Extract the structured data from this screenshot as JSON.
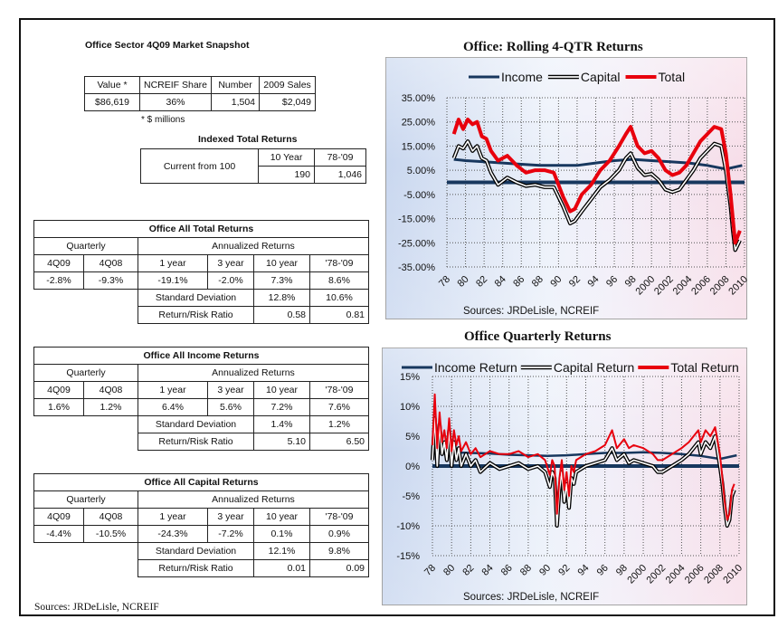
{
  "snapshot": {
    "title": "Office Sector 4Q09 Market Snapshot",
    "headers": [
      "Value *",
      "NCREIF Share",
      "Number",
      "2009 Sales"
    ],
    "values": [
      "$86,619",
      "36%",
      "1,504",
      "$2,049"
    ],
    "footnote": "* $ millions"
  },
  "indexed": {
    "title": "Indexed Total Returns",
    "label": "Current from 100",
    "headers": [
      "10 Year",
      "78-'09"
    ],
    "values": [
      "190",
      "1,046"
    ]
  },
  "return_tables": [
    {
      "title": "Office All Total Returns",
      "quarterly_label": "Quarterly",
      "annualized_label": "Annualized Returns",
      "cols": [
        "4Q09",
        "4Q08",
        "1 year",
        "3 year",
        "10 year",
        "'78-'09"
      ],
      "vals": [
        "-2.8%",
        "-9.3%",
        "-19.1%",
        "-2.0%",
        "7.3%",
        "8.6%"
      ],
      "std_label": "Standard Deviation",
      "std": [
        "12.8%",
        "10.6%"
      ],
      "rr_label": "Return/Risk Ratio",
      "rr": [
        "0.58",
        "0.81"
      ]
    },
    {
      "title": "Office All Income Returns",
      "quarterly_label": "Quarterly",
      "annualized_label": "Annualized Returns",
      "cols": [
        "4Q09",
        "4Q08",
        "1 year",
        "3 year",
        "10 year",
        "'78-'09"
      ],
      "vals": [
        "1.6%",
        "1.2%",
        "6.4%",
        "5.6%",
        "7.2%",
        "7.6%"
      ],
      "std_label": "Standard Deviation",
      "std": [
        "1.4%",
        "1.2%"
      ],
      "rr_label": "Return/Risk Ratio",
      "rr": [
        "5.10",
        "6.50"
      ]
    },
    {
      "title": "Office All Capital Returns",
      "quarterly_label": "Quarterly",
      "annualized_label": "Annualized Returns",
      "cols": [
        "4Q09",
        "4Q08",
        "1 year",
        "3 year",
        "10 year",
        "'78-'09"
      ],
      "vals": [
        "-4.4%",
        "-10.5%",
        "-24.3%",
        "-7.2%",
        "0.1%",
        "0.9%"
      ],
      "std_label": "Standard Deviation",
      "std": [
        "12.1%",
        "9.8%"
      ],
      "rr_label": "Return/Risk Ratio",
      "rr": [
        "0.01",
        "0.09"
      ]
    }
  ],
  "sources_left": "Sources: JRDeLisle, NCREIF",
  "chart_data": [
    {
      "type": "line",
      "title": "Office:  Rolling 4-QTR Returns",
      "source": "Sources: JRDeLisle, NCREIF",
      "legend_position": "top",
      "grid": true,
      "x_ticks": [
        "78",
        "80",
        "82",
        "84",
        "86",
        "88",
        "90",
        "92",
        "94",
        "96",
        "98",
        "2000",
        "2002",
        "2004",
        "2006",
        "2008",
        "2010"
      ],
      "y_ticks": [
        "35.00%",
        "25.00%",
        "15.00%",
        "5.00%",
        "-5.00%",
        "-15.00%",
        "-25.00%",
        "-35.00%"
      ],
      "xlim": [
        1978,
        2010
      ],
      "ylim": [
        -35,
        35
      ],
      "series": [
        {
          "name": "Income",
          "color": "#17375e",
          "style": "solid",
          "x": [
            1978.75,
            1980,
            1982,
            1984,
            1986,
            1988,
            1990,
            1992,
            1994,
            1996,
            1998,
            2000,
            2002,
            2004,
            2006,
            2008,
            2009.75
          ],
          "y": [
            9.5,
            9,
            8.5,
            8,
            7.5,
            7,
            7,
            7,
            8,
            9,
            9.5,
            9,
            8.5,
            8,
            7,
            5.5,
            7
          ]
        },
        {
          "name": "Capital",
          "color": "#000000",
          "style": "double",
          "x": [
            1978.75,
            1979.25,
            1979.75,
            1980.25,
            1980.75,
            1981.25,
            1981.75,
            1982.25,
            1982.75,
            1983.5,
            1984.5,
            1985.5,
            1986.5,
            1987.5,
            1988.5,
            1989.5,
            1990.5,
            1991.25,
            1991.75,
            1992.5,
            1993.5,
            1994.5,
            1995.5,
            1996.5,
            1997.25,
            1997.75,
            1998.5,
            1999.25,
            2000,
            2000.75,
            2001.5,
            2002.25,
            2003,
            2003.75,
            2004.5,
            2005.25,
            2006,
            2006.75,
            2007.5,
            2008,
            2008.5,
            2008.75,
            2009,
            2009.5
          ],
          "y": [
            10,
            15,
            14,
            17,
            13,
            15,
            10,
            9,
            4,
            -1,
            2,
            0,
            -1.5,
            -1,
            -2,
            -2,
            -10,
            -17,
            -16,
            -12,
            -7,
            -2,
            1,
            5,
            10,
            12,
            6,
            3,
            3.5,
            1,
            -3,
            -4,
            -3,
            1,
            5,
            10,
            13,
            16,
            15,
            5,
            -10,
            -20,
            -28,
            -24
          ]
        },
        {
          "name": "Total",
          "color": "#e8000d",
          "style": "solid",
          "x": [
            1978.75,
            1979.25,
            1979.75,
            1980.25,
            1980.75,
            1981.25,
            1981.75,
            1982.25,
            1982.75,
            1983.5,
            1984.5,
            1985.5,
            1986.5,
            1987.5,
            1988.5,
            1989.5,
            1990.5,
            1991.25,
            1991.75,
            1992.5,
            1993.5,
            1994.5,
            1995.5,
            1996.5,
            1997.25,
            1997.75,
            1998.5,
            1999.25,
            2000,
            2000.75,
            2001.5,
            2002.25,
            2003,
            2003.75,
            2004.5,
            2005.25,
            2006,
            2006.75,
            2007.5,
            2008,
            2008.5,
            2008.75,
            2009,
            2009.5
          ],
          "y": [
            20,
            26,
            22,
            26,
            24,
            25,
            19,
            18,
            13,
            9,
            11,
            7,
            4,
            5,
            5,
            4,
            -6,
            -12,
            -11,
            -5,
            -1,
            5,
            9,
            15,
            20,
            23,
            15,
            12,
            13,
            10,
            5,
            3,
            4,
            7,
            12,
            17,
            20,
            23,
            22,
            12,
            -5,
            -15,
            -25,
            -20
          ]
        }
      ]
    },
    {
      "type": "line",
      "title": "Office Quarterly Returns",
      "source": "Sources: JRDeLisle, NCREIF",
      "legend_position": "top",
      "grid": true,
      "x_ticks": [
        "78",
        "80",
        "82",
        "84",
        "86",
        "88",
        "90",
        "92",
        "94",
        "96",
        "98",
        "2000",
        "2002",
        "2004",
        "2006",
        "2008",
        "2010"
      ],
      "y_ticks": [
        "15%",
        "10%",
        "5%",
        "0%",
        "-5%",
        "-10%",
        "-15%"
      ],
      "xlim": [
        1978,
        2010
      ],
      "ylim": [
        -15,
        15
      ],
      "series": [
        {
          "name": "Income Return",
          "color": "#17375e",
          "style": "solid",
          "x": [
            1978,
            1980,
            1982,
            1984,
            1986,
            1988,
            1990,
            1992,
            1994,
            1996,
            1998,
            2000,
            2002,
            2004,
            2006,
            2008,
            2009.75
          ],
          "y": [
            2.5,
            2.3,
            2.2,
            2.1,
            1.9,
            1.8,
            1.7,
            1.8,
            2,
            2.2,
            2.2,
            2.3,
            2.2,
            2,
            1.7,
            1.2,
            1.8
          ]
        },
        {
          "name": "Capital Return",
          "color": "#000000",
          "style": "double",
          "x": [
            1978,
            1978.25,
            1978.5,
            1978.75,
            1979,
            1979.25,
            1979.5,
            1979.75,
            1980,
            1980.25,
            1980.5,
            1980.75,
            1981,
            1981.5,
            1982,
            1982.5,
            1983,
            1984,
            1985,
            1986,
            1987,
            1988,
            1989,
            1989.75,
            1990.25,
            1990.5,
            1990.75,
            1991,
            1991.25,
            1991.5,
            1991.75,
            1992,
            1992.25,
            1992.5,
            1992.75,
            1993,
            1994,
            1995,
            1996,
            1996.75,
            1997.25,
            1998,
            1998.5,
            1999,
            2000,
            2001,
            2001.5,
            2002,
            2003,
            2004,
            2004.75,
            2005.25,
            2005.75,
            2006,
            2006.5,
            2007,
            2007.5,
            2008,
            2008.25,
            2008.5,
            2008.75,
            2009,
            2009.25,
            2009.5
          ],
          "y": [
            1,
            8,
            0,
            7,
            2,
            4,
            1,
            6,
            0,
            4,
            1,
            3,
            0,
            2,
            0,
            1,
            -1,
            0.5,
            -0.5,
            0,
            0.5,
            -0.5,
            0,
            -1,
            -3.5,
            -1,
            -2,
            -10,
            -4,
            -1,
            -6,
            -3,
            -7,
            -2,
            -3,
            -1,
            0,
            0.5,
            1,
            3,
            1,
            2,
            0.5,
            1,
            0.5,
            0,
            -1,
            -1,
            0,
            1,
            2,
            3,
            4,
            2,
            4,
            3,
            5,
            0,
            -3,
            -7,
            -10,
            -9,
            -5,
            -4
          ]
        },
        {
          "name": "Total Return",
          "color": "#e8000d",
          "style": "solid",
          "x": [
            1978,
            1978.25,
            1978.5,
            1978.75,
            1979,
            1979.25,
            1979.5,
            1979.75,
            1980,
            1980.25,
            1980.5,
            1980.75,
            1981,
            1981.5,
            1982,
            1982.5,
            1983,
            1984,
            1985,
            1986,
            1987,
            1988,
            1989,
            1989.75,
            1990.25,
            1990.5,
            1990.75,
            1991,
            1991.25,
            1991.5,
            1991.75,
            1992,
            1992.25,
            1992.5,
            1992.75,
            1993,
            1994,
            1995,
            1996,
            1996.75,
            1997.25,
            1998,
            1998.5,
            1999,
            2000,
            2001,
            2001.5,
            2002,
            2003,
            2004,
            2004.75,
            2005.25,
            2005.75,
            2006,
            2006.5,
            2007,
            2007.5,
            2008,
            2008.25,
            2008.5,
            2008.75,
            2009,
            2009.25,
            2009.5
          ],
          "y": [
            3.5,
            12,
            3,
            9,
            4,
            6,
            3,
            8,
            2.5,
            6,
            3.5,
            5,
            2.5,
            4,
            2,
            3,
            1.5,
            2.5,
            2,
            2,
            2.5,
            1.5,
            2,
            1,
            -1.5,
            1,
            0,
            -8,
            -2,
            1,
            -4,
            -1,
            -5,
            0,
            -1,
            1,
            2,
            2.5,
            3.5,
            6,
            3,
            4.5,
            3,
            3.5,
            3,
            2,
            1,
            1,
            2,
            3,
            4,
            5,
            6,
            4,
            6,
            5,
            6.5,
            2,
            -2,
            -6,
            -9,
            -8,
            -4,
            -3
          ]
        }
      ]
    }
  ]
}
